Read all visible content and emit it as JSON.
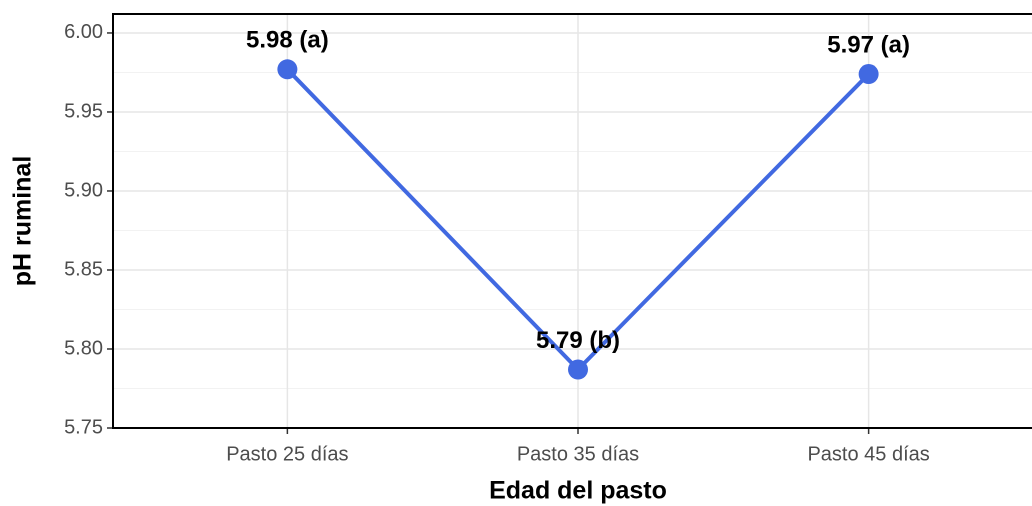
{
  "chart_data": {
    "type": "line",
    "x_label": "Edad del pasto",
    "y_label": "pH ruminal",
    "categories": [
      "Pasto 25 días",
      "Pasto 35 días",
      "Pasto 45 días"
    ],
    "values": [
      5.977,
      5.787,
      5.974
    ],
    "value_labels": [
      "5.98 (a)",
      "5.79 (b)",
      "5.97 (a)"
    ],
    "color": "#4169e1",
    "ylim": [
      5.75,
      6.012
    ],
    "yticks": [
      {
        "value": 5.75,
        "label": "5.75"
      },
      {
        "value": 5.8,
        "label": "5.80"
      },
      {
        "value": 5.85,
        "label": "5.85"
      },
      {
        "value": 5.9,
        "label": "5.90"
      },
      {
        "value": 5.95,
        "label": "5.95"
      },
      {
        "value": 6.0,
        "label": "6.00"
      }
    ],
    "grid": true
  }
}
